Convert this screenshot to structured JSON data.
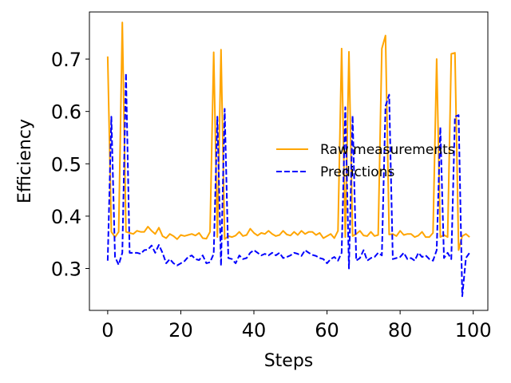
{
  "chart_data": {
    "type": "line",
    "title": "",
    "xlabel": "Steps",
    "ylabel": "Efficiency",
    "xlim": [
      -5,
      104
    ],
    "ylim": [
      0.22,
      0.79
    ],
    "xticks": [
      0,
      20,
      40,
      60,
      80,
      100
    ],
    "yticks": [
      0.3,
      0.4,
      0.5,
      0.6,
      0.7
    ],
    "grid": false,
    "legend_position": "center-right",
    "x": [
      0,
      1,
      2,
      3,
      4,
      5,
      6,
      7,
      8,
      9,
      10,
      11,
      12,
      13,
      14,
      15,
      16,
      17,
      18,
      19,
      20,
      21,
      22,
      23,
      24,
      25,
      26,
      27,
      28,
      29,
      30,
      31,
      32,
      33,
      34,
      35,
      36,
      37,
      38,
      39,
      40,
      41,
      42,
      43,
      44,
      45,
      46,
      47,
      48,
      49,
      50,
      51,
      52,
      53,
      54,
      55,
      56,
      57,
      58,
      59,
      60,
      61,
      62,
      63,
      64,
      65,
      66,
      67,
      68,
      69,
      70,
      71,
      72,
      73,
      74,
      75,
      76,
      77,
      78,
      79,
      80,
      81,
      82,
      83,
      84,
      85,
      86,
      87,
      88,
      89,
      90,
      91,
      92,
      93,
      94,
      95,
      96,
      97,
      98,
      99
    ],
    "series": [
      {
        "name": "Raw measurements",
        "color": "#FFA500",
        "style": "solid",
        "values": [
          0.705,
          0.37,
          0.36,
          0.37,
          0.77,
          0.37,
          0.368,
          0.366,
          0.372,
          0.37,
          0.37,
          0.38,
          0.372,
          0.366,
          0.378,
          0.362,
          0.358,
          0.366,
          0.362,
          0.356,
          0.364,
          0.362,
          0.364,
          0.366,
          0.363,
          0.368,
          0.358,
          0.357,
          0.37,
          0.713,
          0.36,
          0.718,
          0.356,
          0.362,
          0.36,
          0.363,
          0.37,
          0.362,
          0.364,
          0.376,
          0.368,
          0.363,
          0.368,
          0.366,
          0.372,
          0.366,
          0.362,
          0.364,
          0.372,
          0.365,
          0.363,
          0.37,
          0.364,
          0.372,
          0.366,
          0.37,
          0.37,
          0.364,
          0.368,
          0.358,
          0.362,
          0.366,
          0.358,
          0.372,
          0.72,
          0.36,
          0.714,
          0.362,
          0.366,
          0.372,
          0.363,
          0.362,
          0.37,
          0.362,
          0.364,
          0.72,
          0.745,
          0.365,
          0.366,
          0.362,
          0.372,
          0.364,
          0.366,
          0.366,
          0.36,
          0.363,
          0.37,
          0.36,
          0.36,
          0.368,
          0.7,
          0.36,
          0.364,
          0.36,
          0.71,
          0.712,
          0.335,
          0.362,
          0.366,
          0.36
        ]
      },
      {
        "name": "Predictions",
        "color": "#0000FF",
        "style": "dashed",
        "values": [
          0.315,
          0.59,
          0.322,
          0.307,
          0.33,
          0.673,
          0.33,
          0.33,
          0.33,
          0.328,
          0.335,
          0.336,
          0.344,
          0.33,
          0.345,
          0.33,
          0.31,
          0.318,
          0.31,
          0.306,
          0.31,
          0.314,
          0.322,
          0.325,
          0.318,
          0.316,
          0.325,
          0.31,
          0.312,
          0.328,
          0.59,
          0.305,
          0.605,
          0.32,
          0.318,
          0.31,
          0.325,
          0.318,
          0.32,
          0.33,
          0.335,
          0.33,
          0.325,
          0.328,
          0.325,
          0.33,
          0.325,
          0.33,
          0.32,
          0.322,
          0.325,
          0.33,
          0.328,
          0.324,
          0.335,
          0.33,
          0.326,
          0.324,
          0.32,
          0.318,
          0.31,
          0.318,
          0.322,
          0.315,
          0.33,
          0.608,
          0.3,
          0.592,
          0.315,
          0.32,
          0.335,
          0.315,
          0.32,
          0.322,
          0.33,
          0.325,
          0.61,
          0.632,
          0.318,
          0.32,
          0.322,
          0.33,
          0.318,
          0.32,
          0.315,
          0.33,
          0.322,
          0.325,
          0.318,
          0.315,
          0.335,
          0.57,
          0.32,
          0.33,
          0.318,
          0.59,
          0.593,
          0.247,
          0.32,
          0.33
        ]
      }
    ]
  }
}
